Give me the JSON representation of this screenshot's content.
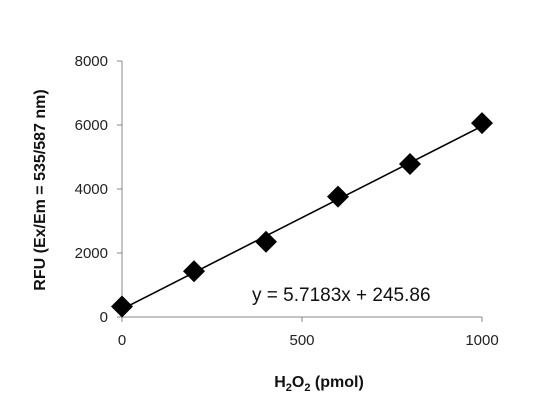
{
  "chart_data": {
    "type": "scatter",
    "xlabel": "H2O2 (pmol)",
    "xlabel_parts": {
      "main": "H",
      "sub1": "2",
      "mid": "O",
      "sub2": "2",
      "tail": " (pmol)"
    },
    "ylabel": "RFU (Ex/Em = 535/587 nm)",
    "xlim": [
      0,
      1000
    ],
    "ylim": [
      0,
      8000
    ],
    "x_ticks": [
      0,
      500,
      1000
    ],
    "y_ticks": [
      0,
      2000,
      4000,
      6000,
      8000
    ],
    "grid": false,
    "series": [
      {
        "x": [
          0,
          200,
          400,
          600,
          800,
          1000
        ],
        "y": [
          330,
          1430,
          2350,
          3760,
          4780,
          6060
        ],
        "marker": "diamond",
        "color": "#000000"
      }
    ],
    "trendline": {
      "type": "linear",
      "slope": 5.7183,
      "intercept": 245.86,
      "equation": "y = 5.7183x + 245.86"
    }
  }
}
